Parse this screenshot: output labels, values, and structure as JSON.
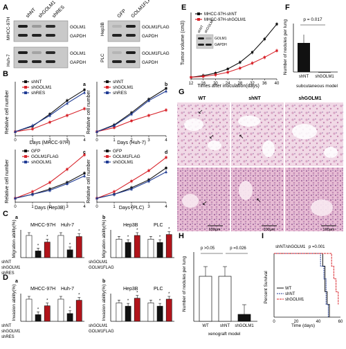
{
  "panels": {
    "A": "A",
    "B": "B",
    "C": "C",
    "D": "D",
    "E": "E",
    "F": "F",
    "G": "G",
    "H": "H",
    "I": "I"
  },
  "blotA": {
    "lanes_left": [
      "shNT",
      "shGOLM1",
      "shRES"
    ],
    "lanes_right": [
      "GFP",
      "GOLM1FLAG"
    ],
    "cell_left_top": "MHCC-97H",
    "cell_left_bottom": "Huh-7",
    "cell_right_top": "Hep3B",
    "cell_right_bottom": "PLC",
    "bands_left": [
      "GOLM1",
      "GAPDH",
      "GOLM1",
      "GAPDH"
    ],
    "bands_right": [
      "GOLM1FLAG",
      "GAPDH",
      "GOLM1FLAG",
      "GAPDH"
    ]
  },
  "panelB": {
    "ylabel": "Relative cell number",
    "legend_top": [
      "shNT",
      "shGOLM1",
      "shRES"
    ],
    "legend_bottom": [
      "GFP",
      "GOLM1FLAG",
      "shGOLM1"
    ],
    "xlabel_a": "Days (MHCC-97H)",
    "xlabel_b": "Days (Huh-7)",
    "xlabel_c": "Days (Hep3B)",
    "xlabel_d": "Days (PLC)",
    "sub": [
      "a",
      "b",
      "c",
      "d"
    ]
  },
  "panelC": {
    "ylabel": "Migration ability(%)",
    "title_a": "MHCC-97H",
    "title_a2": "Huh-7",
    "title_b": "Hep3B",
    "title_b2": "PLC",
    "rows_a": [
      "shNT",
      "shGOLM1",
      "shRES"
    ],
    "rows_b": [
      "shGOLM1",
      "GOLM1FLAG"
    ],
    "sub": [
      "a",
      "b"
    ]
  },
  "panelD": {
    "ylabel": "Invasion ability(%)",
    "title_a": "MHCC-97H",
    "title_a2": "Huh-7",
    "title_b": "Hep3B",
    "title_b2": "PLC",
    "rows_a": [
      "shNT",
      "shGOLM1",
      "shRES"
    ],
    "rows_b": [
      "shGOLM1",
      "GOLM1FLAG"
    ],
    "sub": [
      "a",
      "b"
    ]
  },
  "panelE": {
    "ylabel": "Tumor volume (cm3)",
    "xlabel": "Times after inoculation(days)",
    "legend": [
      "MHCC-97H-shNT",
      "MHCC-97H-shGOLM1"
    ],
    "blot_lanes": [
      "shNT",
      "shGOLM1"
    ],
    "blot_bands": [
      "GOLM1",
      "GAPDH"
    ]
  },
  "panelF": {
    "ylabel": "Number of nodules per lung",
    "pvalue": "p = 0.017",
    "groups": [
      "shNT",
      "shGOLM1"
    ],
    "model": "subcutaneous model"
  },
  "panelG": {
    "cols": [
      "WT",
      "shNT",
      "shGOLM1"
    ],
    "scalebar": "100μm"
  },
  "panelH": {
    "ylabel": "Number of nodules per lung",
    "p1": "p >0.05",
    "p2": "p =0.026",
    "groups": [
      "WT",
      "shNT",
      "shGOLM1"
    ],
    "model": "xenograft model"
  },
  "panelI": {
    "ylabel": "Percent Survival",
    "xlabel": "Time (days)",
    "compare": "shNT/shGOLM1",
    "pvalue": "p =0.001",
    "legend": [
      "WT",
      "shNT",
      "shGOLM1"
    ]
  },
  "colors": {
    "black": "#111111",
    "red": "#d8232a",
    "blue": "#1f3a93",
    "darkred": "#b1141b"
  },
  "chart_data": [
    {
      "type": "line",
      "id": "B-a",
      "x": [
        0,
        1,
        2,
        3,
        4
      ],
      "xlabel": "Days (MHCC-97H)",
      "ylabel": "Relative cell number",
      "ylim": [
        0,
        4
      ],
      "series": [
        {
          "name": "shNT",
          "values": [
            0.3,
            0.7,
            1.6,
            2.6,
            3.4
          ]
        },
        {
          "name": "shGOLM1",
          "values": [
            0.3,
            0.5,
            1.0,
            1.5,
            2.0
          ]
        },
        {
          "name": "shRES",
          "values": [
            0.3,
            0.75,
            1.5,
            2.4,
            3.2
          ]
        }
      ]
    },
    {
      "type": "line",
      "id": "B-b",
      "x": [
        0,
        1,
        2,
        3,
        4
      ],
      "xlabel": "Days (Huh-7)",
      "ylabel": "Relative cell number",
      "ylim": [
        0,
        4
      ],
      "series": [
        {
          "name": "shNT",
          "values": [
            0.3,
            0.8,
            1.7,
            2.7,
            3.5
          ]
        },
        {
          "name": "shGOLM1",
          "values": [
            0.3,
            0.6,
            1.1,
            1.5,
            1.9
          ]
        },
        {
          "name": "shRES",
          "values": [
            0.3,
            0.75,
            1.6,
            2.6,
            3.3
          ]
        }
      ]
    },
    {
      "type": "line",
      "id": "B-c",
      "x": [
        0,
        1,
        2,
        3,
        4
      ],
      "xlabel": "Days (Hep3B)",
      "ylabel": "Relative cell number",
      "ylim": [
        0,
        4
      ],
      "series": [
        {
          "name": "GFP",
          "values": [
            0.3,
            0.6,
            1.0,
            1.5,
            2.2
          ]
        },
        {
          "name": "GOLM1FLAG",
          "values": [
            0.3,
            0.8,
            1.5,
            2.5,
            3.6
          ]
        },
        {
          "name": "shGOLM1",
          "values": [
            0.3,
            0.6,
            0.9,
            1.4,
            2.0
          ]
        }
      ]
    },
    {
      "type": "line",
      "id": "B-d",
      "x": [
        0,
        1,
        2,
        3,
        4
      ],
      "xlabel": "Days (PLC)",
      "ylabel": "Relative cell number",
      "ylim": [
        0,
        4
      ],
      "series": [
        {
          "name": "GFP",
          "values": [
            0.3,
            0.6,
            1.1,
            1.7,
            2.6
          ]
        },
        {
          "name": "GOLM1FLAG",
          "values": [
            0.3,
            0.8,
            1.6,
            2.4,
            3.4
          ]
        },
        {
          "name": "shGOLM1",
          "values": [
            0.3,
            0.6,
            1.0,
            1.6,
            2.3
          ]
        }
      ]
    },
    {
      "type": "bar",
      "id": "C-a",
      "categories": [
        "MHCC-97H 1",
        "MHCC-97H 2",
        "MHCC-97H 3",
        "Huh-7 1",
        "Huh-7 2",
        "Huh-7 3"
      ],
      "values": [
        100,
        30,
        70,
        100,
        35,
        95
      ],
      "ylim": [
        0,
        125
      ],
      "ylabel": "Migration ability(%)"
    },
    {
      "type": "bar",
      "id": "C-b",
      "categories": [
        "Hep3B 1",
        "Hep3B 2",
        "Hep3B 3",
        "PLC 1",
        "PLC 2",
        "PLC 3"
      ],
      "values": [
        100,
        82,
        120,
        100,
        82,
        125
      ],
      "ylim": [
        0,
        150
      ],
      "ylabel": "Migration ability(%)"
    },
    {
      "type": "bar",
      "id": "D-a",
      "categories": [
        "MHCC-97H 1",
        "MHCC-97H 2",
        "MHCC-97H 3",
        "Huh-7 1",
        "Huh-7 2",
        "Huh-7 3"
      ],
      "values": [
        100,
        30,
        70,
        100,
        35,
        95
      ],
      "ylim": [
        0,
        125
      ],
      "ylabel": "Invasion ability(%)"
    },
    {
      "type": "bar",
      "id": "D-b",
      "categories": [
        "Hep3B 1",
        "Hep3B 2",
        "Hep3B 3",
        "PLC 1",
        "PLC 2",
        "PLC 3"
      ],
      "values": [
        100,
        82,
        125,
        100,
        82,
        120
      ],
      "ylim": [
        0,
        150
      ],
      "ylabel": "Invasion ability(%)"
    },
    {
      "type": "line",
      "id": "E",
      "x": [
        12,
        16,
        20,
        24,
        28,
        32,
        36,
        40
      ],
      "ylim": [
        0,
        4
      ],
      "xlabel": "Times after inoculation(days)",
      "ylabel": "Tumor volume (cm3)",
      "series": [
        {
          "name": "MHCC-97H-shNT",
          "values": [
            0.1,
            0.2,
            0.35,
            0.6,
            1.0,
            1.6,
            2.4,
            3.3
          ]
        },
        {
          "name": "MHCC-97H-shGOLM1",
          "values": [
            0.1,
            0.15,
            0.25,
            0.4,
            0.65,
            0.95,
            1.3,
            1.7
          ]
        }
      ]
    },
    {
      "type": "bar",
      "id": "F",
      "categories": [
        "shNT",
        "shGOLM1"
      ],
      "values": [
        3,
        0
      ],
      "ylim": [
        0,
        5
      ],
      "ylabel": "Number of nodules per lung"
    },
    {
      "type": "bar",
      "id": "H",
      "categories": [
        "WT",
        "shNT",
        "shGOLM1"
      ],
      "values": [
        6.5,
        6.5,
        1
      ],
      "ylim": [
        0,
        10
      ],
      "ylabel": "Number of nodules per lung"
    },
    {
      "type": "line",
      "id": "I",
      "xlim": [
        0,
        60
      ],
      "ylim": [
        0,
        100
      ],
      "xlabel": "Time (days)",
      "ylabel": "Percent Survival",
      "series": [
        {
          "name": "WT",
          "values": [
            [
              0,
              100
            ],
            [
              42,
              100
            ],
            [
              44,
              80
            ],
            [
              46,
              40
            ],
            [
              48,
              20
            ],
            [
              50,
              0
            ]
          ]
        },
        {
          "name": "shNT",
          "values": [
            [
              0,
              100
            ],
            [
              40,
              100
            ],
            [
              42,
              80
            ],
            [
              45,
              60
            ],
            [
              47,
              20
            ],
            [
              49,
              0
            ]
          ]
        },
        {
          "name": "shGOLM1",
          "values": [
            [
              0,
              100
            ],
            [
              50,
              100
            ],
            [
              52,
              80
            ],
            [
              54,
              60
            ],
            [
              56,
              40
            ],
            [
              58,
              20
            ]
          ]
        }
      ]
    }
  ]
}
